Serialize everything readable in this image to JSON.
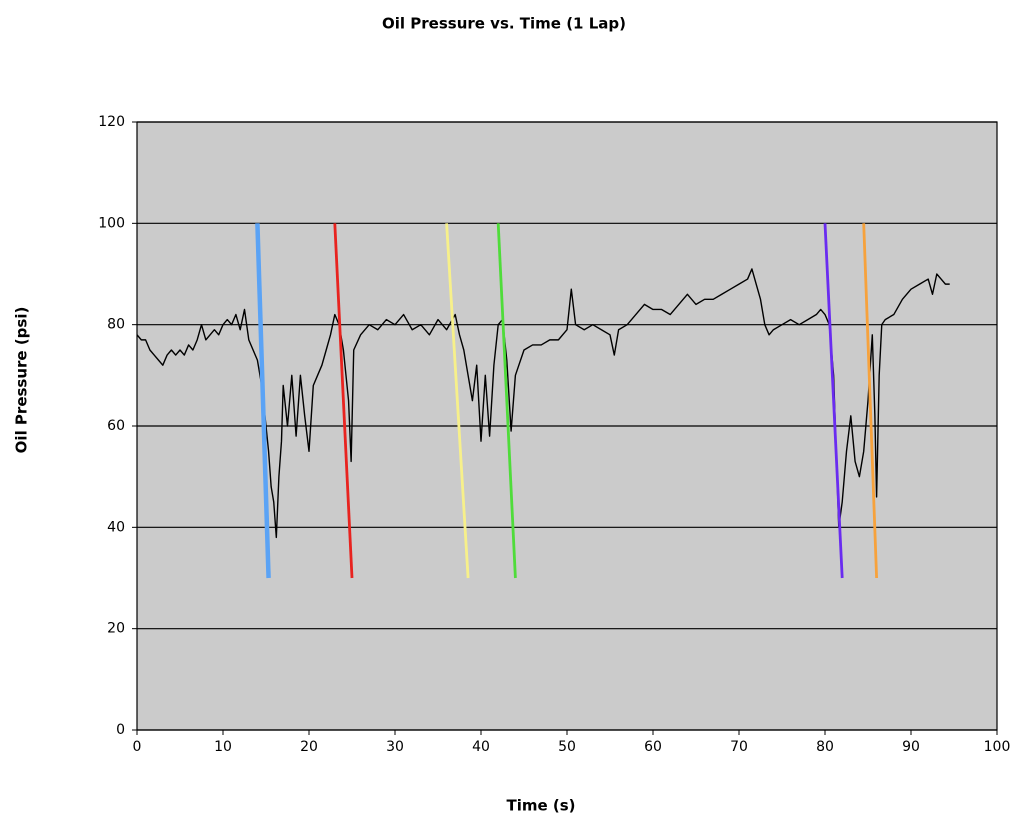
{
  "chart_data": {
    "type": "line",
    "title": "Oil Pressure  vs. Time (1 Lap)",
    "x_label": "Time (s)",
    "y_label": "Oil Pressure  (psi)",
    "xlim": [
      0,
      100
    ],
    "xticks": [
      0,
      10,
      20,
      30,
      40,
      50,
      60,
      70,
      80,
      90,
      100
    ],
    "ylim": [
      0,
      120
    ],
    "yticks": [
      0,
      20,
      40,
      60,
      80,
      100,
      120
    ],
    "grid": true,
    "series": [
      {
        "color": "#000000",
        "x": [
          0,
          0.5,
          1,
          1.5,
          2,
          2.5,
          3,
          3.5,
          4,
          4.5,
          5,
          5.5,
          6,
          6.5,
          7,
          7.5,
          8,
          8.5,
          9,
          9.5,
          10,
          10.5,
          11,
          11.5,
          12,
          12.5,
          13,
          13.5,
          14,
          14.5,
          15,
          15.3,
          15.6,
          15.9,
          16.2,
          16.5,
          16.8,
          17,
          17.5,
          18,
          18.5,
          19,
          19.5,
          20,
          20.5,
          21,
          21.5,
          22,
          22.5,
          23,
          23.5,
          24,
          24.3,
          24.6,
          24.9,
          25.2,
          26,
          27,
          28,
          29,
          30,
          31,
          32,
          33,
          34,
          35,
          36,
          37,
          37.5,
          38,
          38.5,
          39,
          39.5,
          40,
          40.5,
          41,
          41.5,
          42,
          42.5,
          43,
          43.5,
          44,
          45,
          46,
          47,
          48,
          49,
          50,
          50.5,
          51,
          52,
          53,
          54,
          55,
          55.5,
          56,
          57,
          58,
          59,
          60,
          61,
          62,
          63,
          64,
          65,
          66,
          67,
          68,
          69,
          70,
          71,
          71.5,
          72,
          72.5,
          73,
          73.5,
          74,
          75,
          76,
          77,
          78,
          79,
          79.5,
          80,
          80.5,
          81,
          81.3,
          81.6,
          82,
          82.5,
          83,
          83.5,
          84,
          84.5,
          85,
          85.5,
          85.8,
          86,
          86.3,
          86.6,
          87,
          88,
          89,
          90,
          91,
          92,
          92.5,
          93,
          93.5,
          94,
          94.5
        ],
        "values": [
          78,
          77,
          77,
          75,
          74,
          73,
          72,
          74,
          75,
          74,
          75,
          74,
          76,
          75,
          77,
          80,
          77,
          78,
          79,
          78,
          80,
          81,
          80,
          82,
          79,
          83,
          77,
          75,
          73,
          68,
          60,
          55,
          48,
          45,
          38,
          50,
          57,
          68,
          60,
          70,
          58,
          70,
          62,
          55,
          68,
          70,
          72,
          75,
          78,
          82,
          80,
          75,
          70,
          65,
          53,
          75,
          78,
          80,
          79,
          81,
          80,
          82,
          79,
          80,
          78,
          81,
          79,
          82,
          78,
          75,
          70,
          65,
          72,
          57,
          70,
          58,
          72,
          80,
          81,
          73,
          59,
          70,
          75,
          76,
          76,
          77,
          77,
          79,
          87,
          80,
          79,
          80,
          79,
          78,
          74,
          79,
          80,
          82,
          84,
          83,
          83,
          82,
          84,
          86,
          84,
          85,
          85,
          86,
          87,
          88,
          89,
          91,
          88,
          85,
          80,
          78,
          79,
          80,
          81,
          80,
          81,
          82,
          83,
          82,
          80,
          70,
          55,
          40,
          45,
          55,
          62,
          53,
          50,
          55,
          65,
          78,
          62,
          46,
          70,
          80,
          81,
          82,
          85,
          87,
          88,
          89,
          86,
          90,
          89,
          88,
          88
        ]
      },
      {
        "color": "#5ba3f5",
        "x": [
          14,
          15.3
        ],
        "values": [
          100,
          30
        ]
      },
      {
        "color": "#e8231f",
        "x": [
          23,
          25
        ],
        "values": [
          100,
          30
        ]
      },
      {
        "color": "#f7f08a",
        "x": [
          36,
          38.5
        ],
        "values": [
          100,
          30
        ]
      },
      {
        "color": "#4fdc3a",
        "x": [
          42,
          44
        ],
        "values": [
          100,
          30
        ]
      },
      {
        "color": "#6a2cf0",
        "x": [
          80,
          82
        ],
        "values": [
          100,
          30
        ]
      },
      {
        "color": "#f7a23c",
        "x": [
          84.5,
          86
        ],
        "values": [
          100,
          30
        ]
      }
    ]
  }
}
